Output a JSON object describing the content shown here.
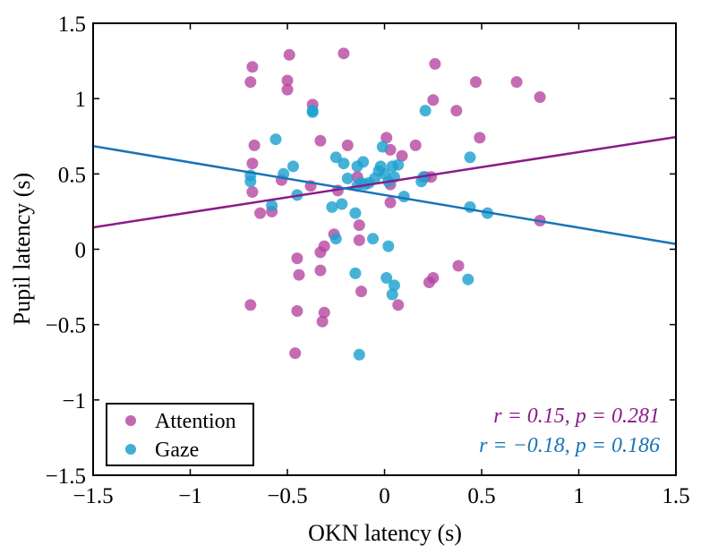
{
  "chart_data": {
    "type": "scatter",
    "title": "",
    "xlabel": "OKN latency (s)",
    "ylabel": "Pupil latency (s)",
    "xlim": [
      -1.5,
      1.5
    ],
    "ylim": [
      -1.5,
      1.5
    ],
    "xticks": [
      -1.5,
      -1,
      -0.5,
      0,
      0.5,
      1,
      1.5
    ],
    "yticks": [
      -1.5,
      -1,
      -0.5,
      0,
      0.5,
      1,
      1.5
    ],
    "xtick_labels": [
      "−1.5",
      "−1",
      "−0.5",
      "0",
      "0.5",
      "1",
      "1.5"
    ],
    "ytick_labels": [
      "−1.5",
      "−1",
      "−0.5",
      "0",
      "0.5",
      "1",
      "1.5"
    ],
    "grid": false,
    "legend_position": "bottom-left",
    "series": [
      {
        "name": "Attention",
        "color": "#b5419f",
        "fit_line": [
          [
            -1.5,
            0.145
          ],
          [
            1.5,
            0.745
          ]
        ],
        "annotation": "r = 0.15, p = 0.281",
        "points": [
          [
            -0.68,
            1.21
          ],
          [
            -0.69,
            1.11
          ],
          [
            -0.49,
            1.29
          ],
          [
            -0.5,
            1.12
          ],
          [
            -0.5,
            1.06
          ],
          [
            -0.21,
            1.3
          ],
          [
            -0.37,
            0.96
          ],
          [
            0.26,
            1.23
          ],
          [
            0.25,
            0.99
          ],
          [
            0.47,
            1.11
          ],
          [
            0.68,
            1.11
          ],
          [
            0.8,
            1.01
          ],
          [
            0.37,
            0.92
          ],
          [
            0.49,
            0.74
          ],
          [
            -0.67,
            0.69
          ],
          [
            -0.33,
            0.72
          ],
          [
            -0.19,
            0.69
          ],
          [
            0.01,
            0.74
          ],
          [
            0.03,
            0.66
          ],
          [
            0.16,
            0.69
          ],
          [
            0.09,
            0.62
          ],
          [
            -0.68,
            0.57
          ],
          [
            -0.68,
            0.38
          ],
          [
            -0.64,
            0.24
          ],
          [
            -0.58,
            0.25
          ],
          [
            -0.53,
            0.46
          ],
          [
            -0.38,
            0.42
          ],
          [
            -0.24,
            0.39
          ],
          [
            -0.14,
            0.48
          ],
          [
            0.03,
            0.31
          ],
          [
            0.03,
            0.43
          ],
          [
            0.21,
            0.48
          ],
          [
            0.24,
            0.48
          ],
          [
            0.8,
            0.19
          ],
          [
            -0.13,
            0.16
          ],
          [
            -0.13,
            0.06
          ],
          [
            -0.26,
            0.1
          ],
          [
            -0.31,
            0.02
          ],
          [
            -0.33,
            -0.02
          ],
          [
            -0.45,
            -0.06
          ],
          [
            -0.44,
            -0.17
          ],
          [
            -0.33,
            -0.14
          ],
          [
            -0.12,
            -0.28
          ],
          [
            0.07,
            -0.37
          ],
          [
            0.25,
            -0.19
          ],
          [
            0.23,
            -0.22
          ],
          [
            0.38,
            -0.11
          ],
          [
            -0.69,
            -0.37
          ],
          [
            -0.45,
            -0.41
          ],
          [
            -0.31,
            -0.42
          ],
          [
            -0.32,
            -0.48
          ],
          [
            -0.46,
            -0.69
          ]
        ]
      },
      {
        "name": "Gaze",
        "color": "#1ea1cf",
        "fit_line": [
          [
            -1.5,
            0.685
          ],
          [
            1.5,
            0.035
          ]
        ],
        "annotation": "r = −0.18, p = 0.186",
        "points": [
          [
            -0.37,
            0.91
          ],
          [
            -0.37,
            0.92
          ],
          [
            0.21,
            0.92
          ],
          [
            -0.56,
            0.73
          ],
          [
            -0.69,
            0.49
          ],
          [
            -0.69,
            0.45
          ],
          [
            -0.52,
            0.5
          ],
          [
            -0.47,
            0.55
          ],
          [
            -0.25,
            0.61
          ],
          [
            -0.21,
            0.57
          ],
          [
            -0.19,
            0.47
          ],
          [
            -0.14,
            0.55
          ],
          [
            -0.11,
            0.58
          ],
          [
            -0.1,
            0.43
          ],
          [
            -0.08,
            0.44
          ],
          [
            -0.05,
            0.47
          ],
          [
            -0.03,
            0.52
          ],
          [
            -0.02,
            0.55
          ],
          [
            -0.01,
            0.68
          ],
          [
            0.0,
            0.5
          ],
          [
            0.02,
            0.45
          ],
          [
            0.04,
            0.55
          ],
          [
            0.05,
            0.48
          ],
          [
            0.07,
            0.56
          ],
          [
            0.1,
            0.35
          ],
          [
            0.19,
            0.45
          ],
          [
            0.2,
            0.48
          ],
          [
            0.44,
            0.61
          ],
          [
            -0.45,
            0.36
          ],
          [
            -0.27,
            0.28
          ],
          [
            -0.22,
            0.3
          ],
          [
            -0.15,
            0.24
          ],
          [
            -0.58,
            0.29
          ],
          [
            -0.14,
            0.42
          ],
          [
            -0.12,
            0.44
          ],
          [
            0.44,
            0.28
          ],
          [
            0.53,
            0.24
          ],
          [
            -0.25,
            0.07
          ],
          [
            -0.06,
            0.07
          ],
          [
            0.02,
            0.02
          ],
          [
            -0.15,
            -0.16
          ],
          [
            0.01,
            -0.19
          ],
          [
            0.05,
            -0.24
          ],
          [
            0.04,
            -0.3
          ],
          [
            0.43,
            -0.2
          ],
          [
            -0.13,
            -0.7
          ]
        ]
      }
    ]
  }
}
